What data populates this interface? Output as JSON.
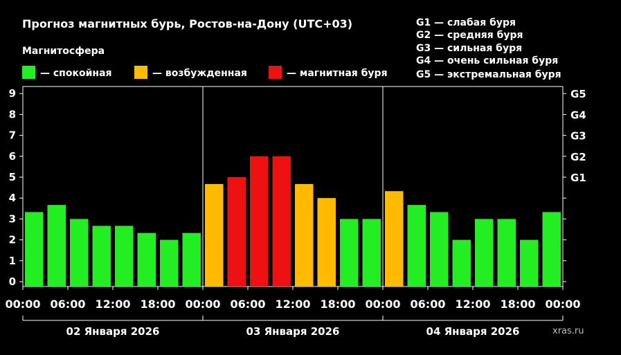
{
  "chart_data": {
    "type": "bar",
    "title": "Прогноз магнитных бурь, Ростов-на-Дону (UTC+03)",
    "legend_title": "Магнитосфера",
    "legend": [
      {
        "label": "— спокойная",
        "color": "#22ee22"
      },
      {
        "label": "— возбужденная",
        "color": "#ffbb00"
      },
      {
        "label": "— магнитная буря",
        "color": "#ee1111"
      }
    ],
    "storm_levels": [
      "G1 — слабая буря",
      "G2 — средняя буря",
      "G3 — сильная буря",
      "G4 — очень сильная буря",
      "G5 — экстремальная буря"
    ],
    "ylim": [
      0,
      9
    ],
    "y_ticks": [
      "0",
      "1",
      "2",
      "3",
      "4",
      "5",
      "6",
      "7",
      "8",
      "9"
    ],
    "right_ticks": [
      {
        "value": 5,
        "label": "G1"
      },
      {
        "value": 6,
        "label": "G2"
      },
      {
        "value": 7,
        "label": "G3"
      },
      {
        "value": 8,
        "label": "G4"
      },
      {
        "value": 9,
        "label": "G5"
      }
    ],
    "x_tick_labels": [
      "00:00",
      "06:00",
      "12:00",
      "18:00",
      "00:00",
      "06:00",
      "12:00",
      "18:00",
      "00:00",
      "06:00",
      "12:00",
      "18:00",
      "00:00"
    ],
    "days": [
      "02 Января 2026",
      "03 Января 2026",
      "04 Января 2026"
    ],
    "values": [
      3.33,
      3.67,
      3,
      2.67,
      2.67,
      2.33,
      2,
      2.33,
      4.67,
      5,
      6,
      6,
      4.67,
      4,
      3,
      3,
      4.33,
      3.67,
      3.33,
      2,
      3,
      3,
      2,
      3.33
    ],
    "colors": {
      "quiet": "#22ee22",
      "active": "#ffbb00",
      "storm": "#ee1111"
    },
    "bar_levels": [
      "quiet",
      "quiet",
      "quiet",
      "quiet",
      "quiet",
      "quiet",
      "quiet",
      "quiet",
      "active",
      "storm",
      "storm",
      "storm",
      "active",
      "active",
      "quiet",
      "quiet",
      "active",
      "quiet",
      "quiet",
      "quiet",
      "quiet",
      "quiet",
      "quiet",
      "quiet"
    ],
    "watermark": "xras.ru"
  }
}
